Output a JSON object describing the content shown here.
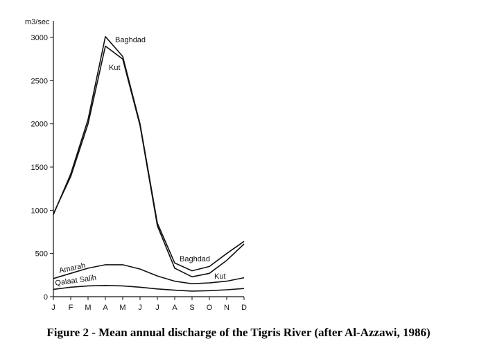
{
  "chart_data": {
    "type": "line",
    "title": "Figure 2 - Mean annual discharge of the Tigris River (after Al-Azzawi, 1986)",
    "ylabel": "m3/sec",
    "xlabel": "",
    "categories": [
      "J",
      "F",
      "M",
      "A",
      "M",
      "J",
      "J",
      "A",
      "S",
      "O",
      "N",
      "D"
    ],
    "ylim": [
      0,
      3000
    ],
    "yticks": [
      0,
      500,
      1000,
      1500,
      2000,
      2500,
      3000
    ],
    "ytick_labels": [
      "0",
      "500",
      "1000",
      "1500",
      "2000",
      "2500",
      "3000"
    ],
    "series": [
      {
        "name": "Baghdad",
        "values": [
          950,
          1420,
          2050,
          3010,
          2780,
          2000,
          850,
          390,
          300,
          350,
          500,
          640
        ]
      },
      {
        "name": "Kut",
        "values": [
          960,
          1390,
          2000,
          2900,
          2750,
          1980,
          820,
          330,
          230,
          270,
          420,
          610
        ]
      },
      {
        "name": "Amarah",
        "values": [
          210,
          270,
          330,
          370,
          370,
          320,
          240,
          180,
          150,
          160,
          180,
          220
        ]
      },
      {
        "name": "Qalaat Salih",
        "values": [
          85,
          110,
          125,
          130,
          125,
          110,
          90,
          75,
          65,
          70,
          80,
          95
        ]
      }
    ],
    "annotations": [
      {
        "text": "Baghdad",
        "series": "Baghdad"
      },
      {
        "text": "Kut",
        "series": "Kut"
      },
      {
        "text": "Baghdad",
        "series": "Baghdad"
      },
      {
        "text": "Kut",
        "series": "Kut"
      },
      {
        "text": "Amarah",
        "series": "Amarah"
      },
      {
        "text": "Qalaat Salih",
        "series": "Qalaat Salih"
      }
    ]
  }
}
